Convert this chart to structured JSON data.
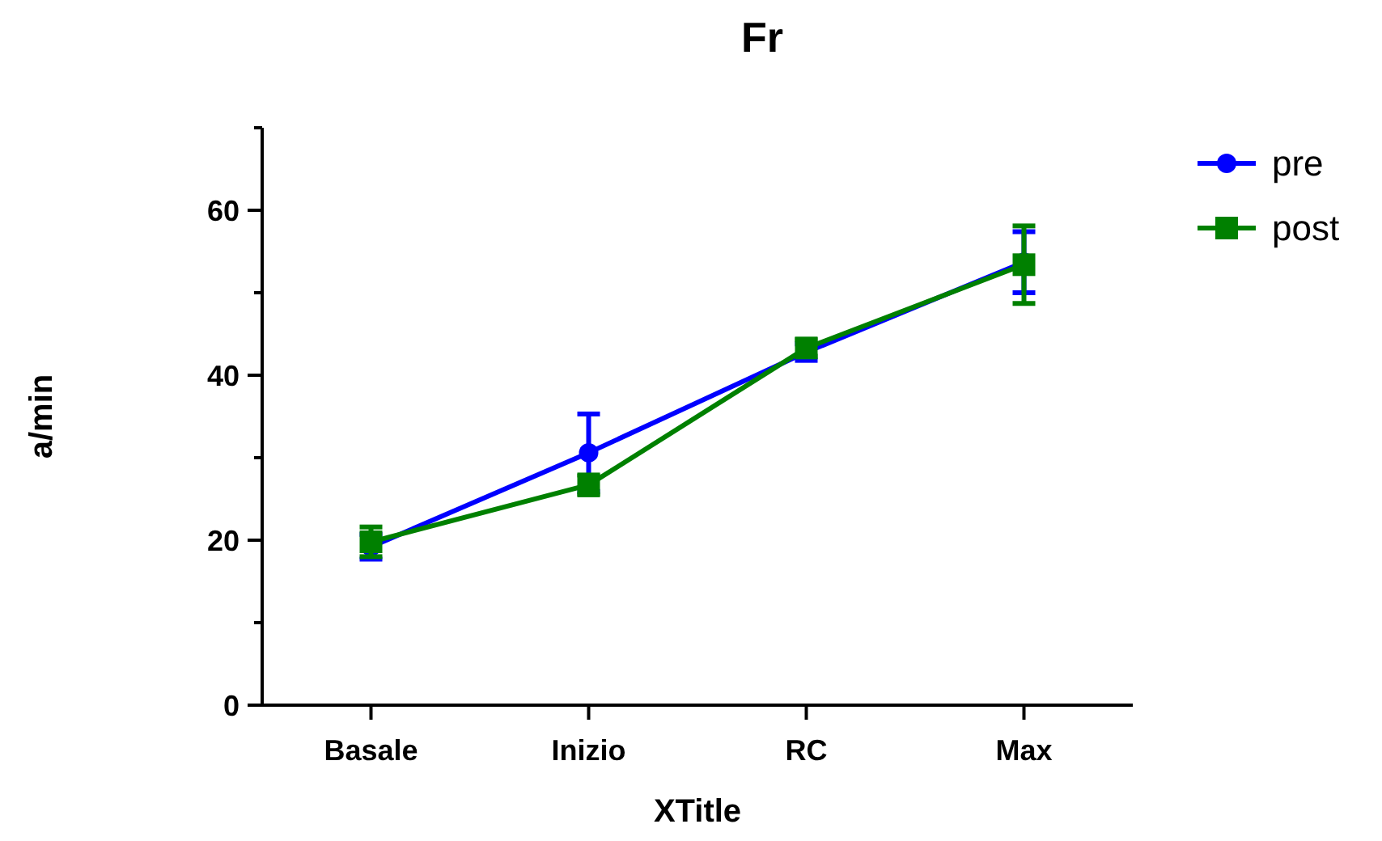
{
  "chart_data": {
    "type": "line",
    "title": "Fr",
    "xlabel": "XTitle",
    "ylabel": "a/min",
    "categories": [
      "Basale",
      "Inizio",
      "RC",
      "Max"
    ],
    "ylim": [
      0,
      70
    ],
    "yticks": [
      0,
      {
        "value": 10,
        "label": null
      },
      20,
      {
        "value": 30,
        "label": null
      },
      40,
      {
        "value": 50,
        "label": null
      },
      60,
      {
        "value": 70,
        "label": null
      }
    ],
    "grid": false,
    "legend": "top right",
    "line_style": "solid",
    "series": [
      {
        "name": "pre",
        "color": "#0000ff",
        "marker": "circle",
        "values": [
          19.2,
          30.6,
          42.8,
          53.7
        ],
        "errors": [
          1.5,
          4.7,
          1,
          3.7
        ]
      },
      {
        "name": "post",
        "color": "#008000",
        "marker": "square",
        "values": [
          19.8,
          26.7,
          43.3,
          53.4
        ],
        "errors": [
          1.8,
          1.2,
          1,
          4.7
        ]
      }
    ]
  }
}
